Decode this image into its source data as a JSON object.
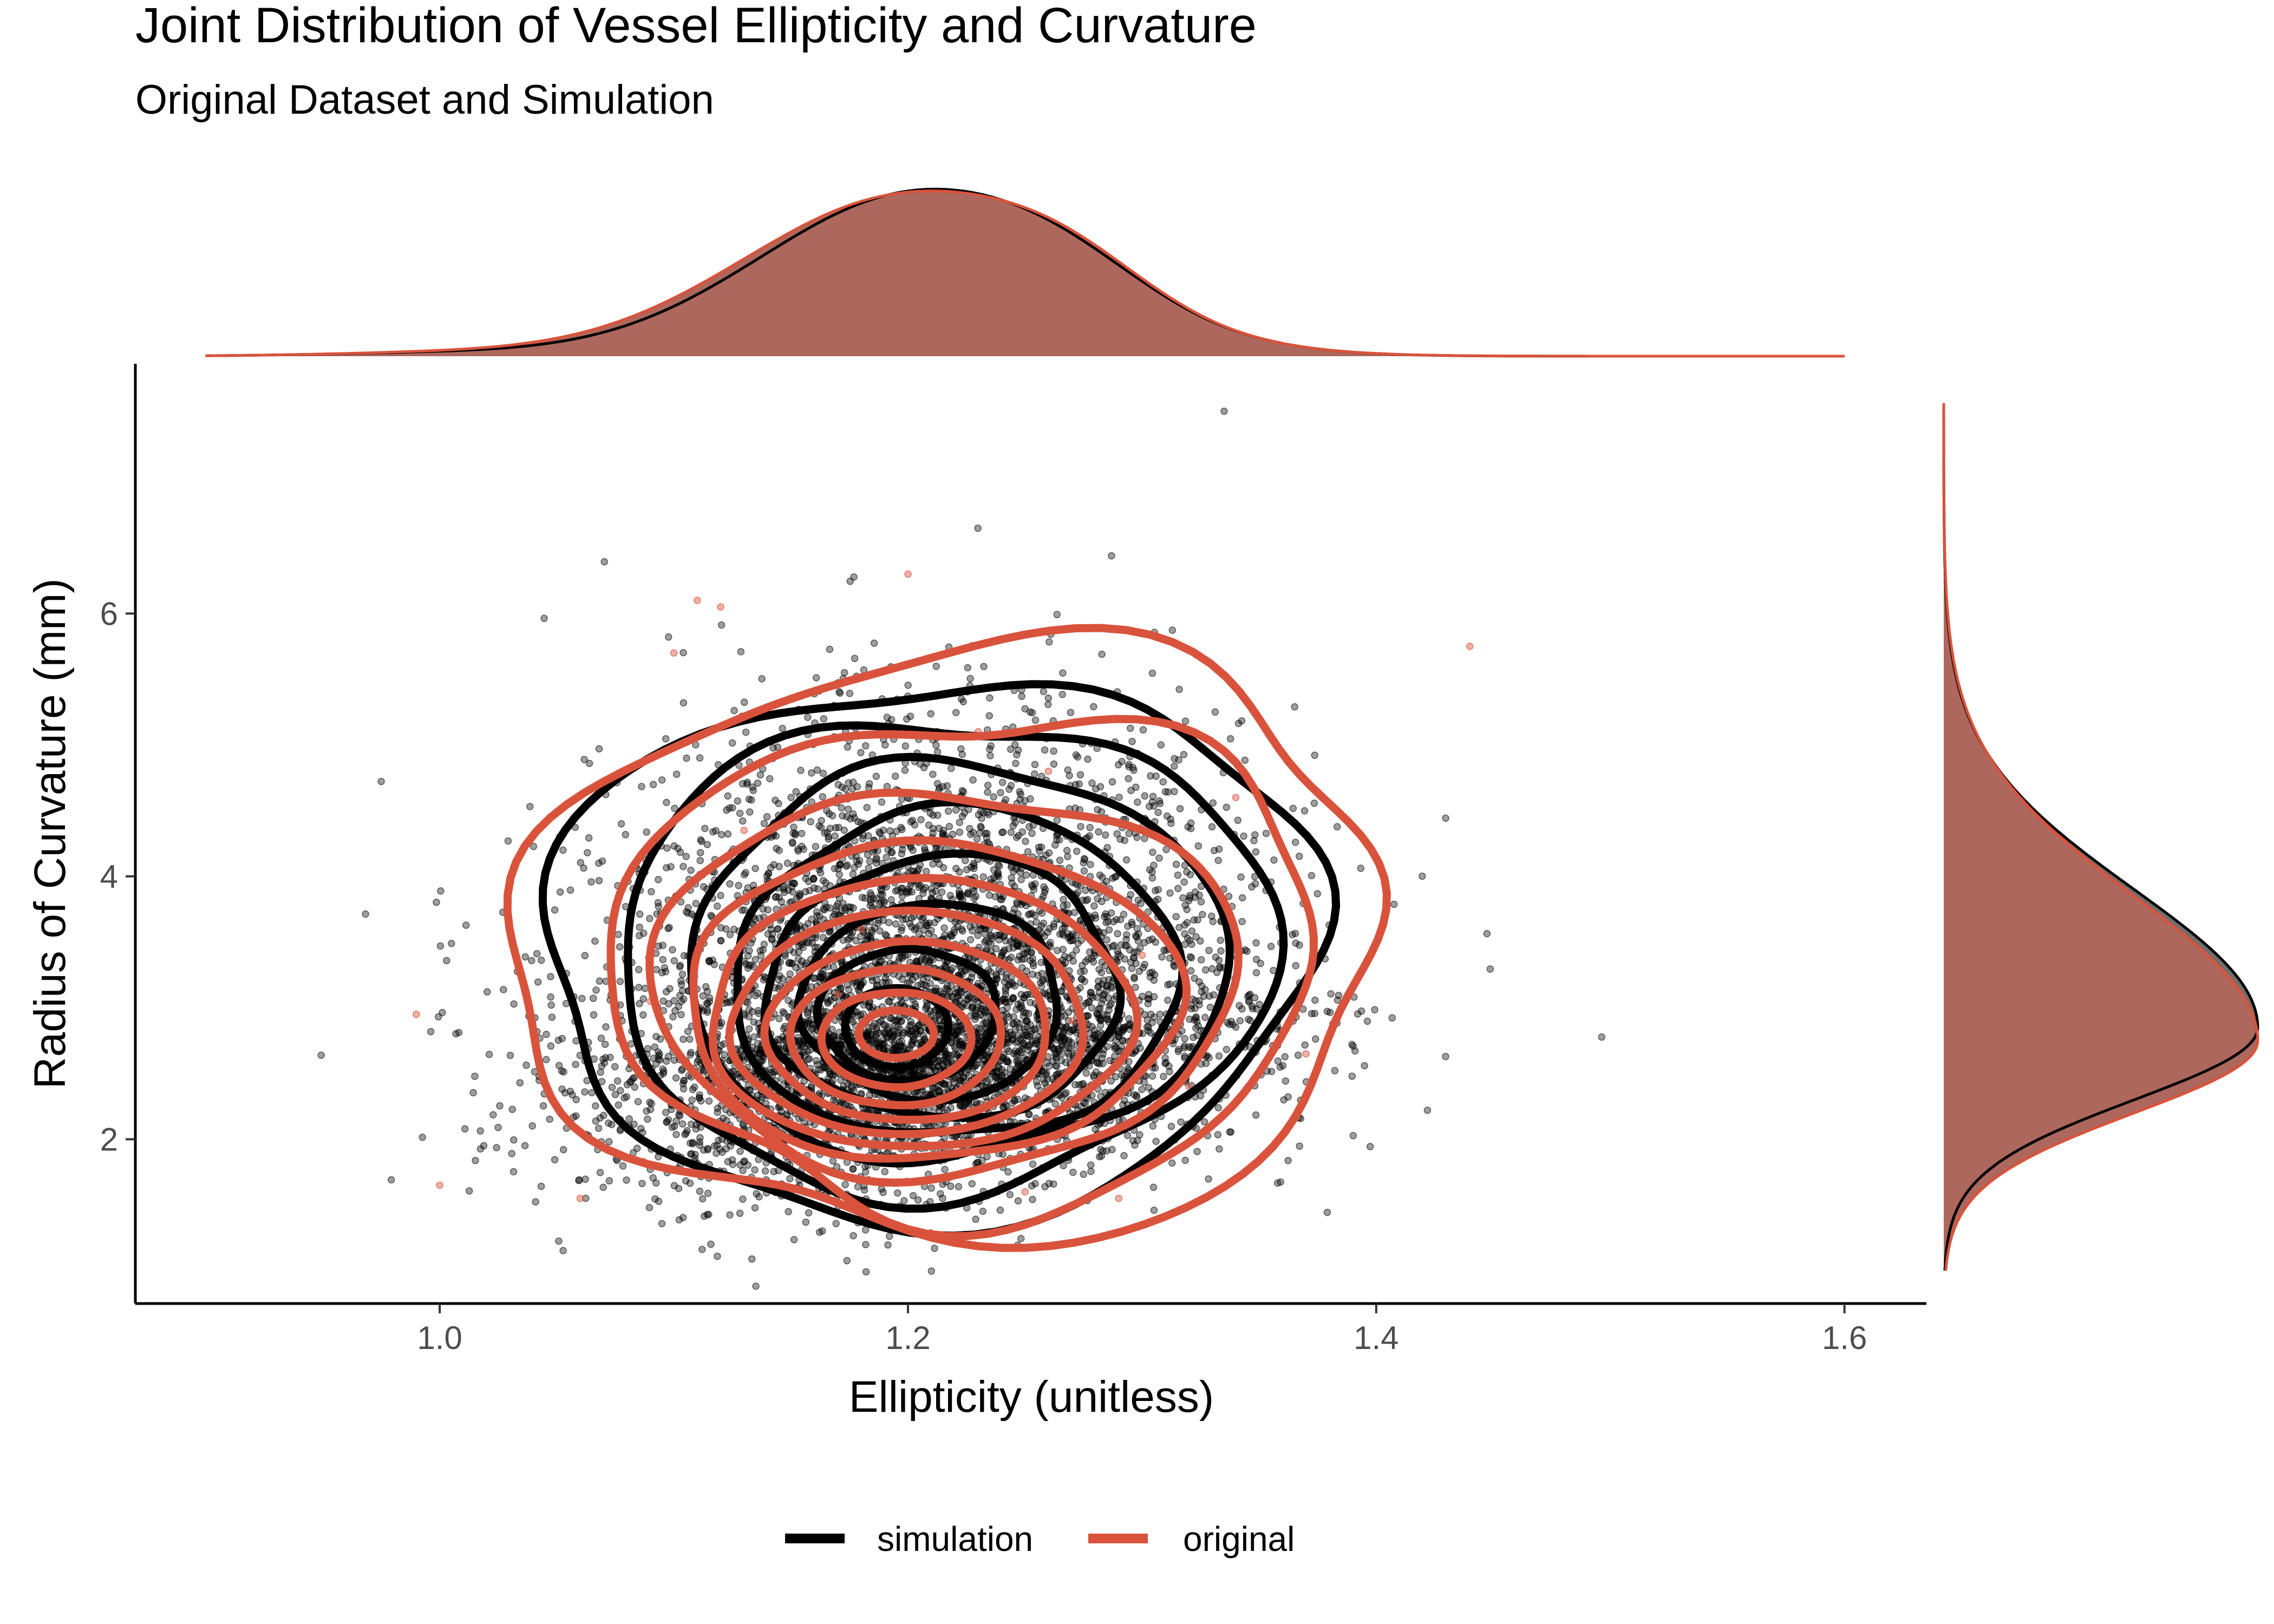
{
  "title": "Joint Distribution of Vessel Ellipticity and Curvature",
  "subtitle": "Original Dataset and Simulation",
  "colors": {
    "simulation": "#000000",
    "original": "#d9533c",
    "marginal_fill": "#ad675d",
    "axis": "#000000",
    "tick_text": "#4d4d4d"
  },
  "chart_data": {
    "type": "scatter",
    "subtype": "scatter with 2D density contours and marginal density plots",
    "title": "Joint Distribution of Vessel Ellipticity and Curvature",
    "subtitle": "Original Dataset and Simulation",
    "xlabel": "Ellipticity (unitless)",
    "ylabel": "Radius of Curvature (mm)",
    "xlim": [
      0.87,
      1.635
    ],
    "ylim": [
      0.75,
      7.9
    ],
    "x_ticks": [
      1.0,
      1.2,
      1.4,
      1.6
    ],
    "x_tick_labels": [
      "1.0",
      "1.2",
      "1.4",
      "1.6"
    ],
    "y_ticks": [
      2,
      4,
      6
    ],
    "y_tick_labels": [
      "2",
      "4",
      "6"
    ],
    "grid": false,
    "legend": {
      "position": "bottom",
      "entries": [
        {
          "label": "simulation",
          "color": "#000000"
        },
        {
          "label": "original",
          "color": "#d9533c"
        }
      ]
    },
    "series": [
      {
        "name": "simulation",
        "color": "#000000",
        "approx_n_points": 6000,
        "center": [
          1.21,
          3.3
        ],
        "contours": [
          {
            "cx": 1.21,
            "cy": 3.45,
            "rx": 0.165,
            "ry": 2.05,
            "skew": 0.08,
            "wobble": 0.045
          },
          {
            "cx": 1.215,
            "cy": 3.4,
            "rx": 0.14,
            "ry": 1.8,
            "skew": 0.07,
            "wobble": 0.04
          },
          {
            "cx": 1.22,
            "cy": 3.35,
            "rx": 0.115,
            "ry": 1.5,
            "skew": 0.06,
            "wobble": 0.035
          },
          {
            "cx": 1.22,
            "cy": 3.25,
            "rx": 0.095,
            "ry": 1.25,
            "skew": 0.05,
            "wobble": 0.03
          },
          {
            "cx": 1.215,
            "cy": 3.15,
            "rx": 0.075,
            "ry": 1.0,
            "skew": 0.04,
            "wobble": 0.03
          },
          {
            "cx": 1.21,
            "cy": 3.05,
            "rx": 0.055,
            "ry": 0.75,
            "skew": 0.03,
            "wobble": 0.025
          },
          {
            "cx": 1.2,
            "cy": 2.95,
            "rx": 0.038,
            "ry": 0.5,
            "skew": 0.02,
            "wobble": 0.02
          },
          {
            "cx": 1.195,
            "cy": 2.85,
            "rx": 0.022,
            "ry": 0.3,
            "skew": 0.0,
            "wobble": 0.01
          }
        ],
        "marginal_x": {
          "mean": 1.205,
          "sd": 0.068
        },
        "marginal_y": {
          "mode": 2.85,
          "sd_low": 0.55,
          "sd_high": 1.05
        }
      },
      {
        "name": "original",
        "color": "#d9533c",
        "approx_n_points": 25,
        "center": [
          1.2,
          2.8
        ],
        "contours": [
          {
            "cx": 1.22,
            "cy": 3.5,
            "rx": 0.185,
            "ry": 2.25,
            "skew": 0.1,
            "wobble": 0.06
          },
          {
            "cx": 1.225,
            "cy": 3.35,
            "rx": 0.15,
            "ry": 1.9,
            "skew": 0.08,
            "wobble": 0.055
          },
          {
            "cx": 1.215,
            "cy": 3.2,
            "rx": 0.125,
            "ry": 1.45,
            "skew": 0.06,
            "wobble": 0.035
          },
          {
            "cx": 1.21,
            "cy": 3.05,
            "rx": 0.105,
            "ry": 1.2,
            "skew": 0.05,
            "wobble": 0.025
          },
          {
            "cx": 1.205,
            "cy": 2.95,
            "rx": 0.09,
            "ry": 1.02,
            "skew": 0.04,
            "wobble": 0.02
          },
          {
            "cx": 1.2,
            "cy": 2.88,
            "rx": 0.075,
            "ry": 0.85,
            "skew": 0.03,
            "wobble": 0.015
          },
          {
            "cx": 1.2,
            "cy": 2.82,
            "rx": 0.06,
            "ry": 0.68,
            "skew": 0.02,
            "wobble": 0.012
          },
          {
            "cx": 1.195,
            "cy": 2.78,
            "rx": 0.045,
            "ry": 0.52,
            "skew": 0.015,
            "wobble": 0.01
          },
          {
            "cx": 1.195,
            "cy": 2.76,
            "rx": 0.032,
            "ry": 0.36,
            "skew": 0.01,
            "wobble": 0.008
          },
          {
            "cx": 1.195,
            "cy": 2.8,
            "rx": 0.016,
            "ry": 0.18,
            "skew": 0.0,
            "wobble": 0.005
          }
        ],
        "points": [
          [
            1.11,
            6.1
          ],
          [
            1.12,
            6.05
          ],
          [
            1.2,
            6.3
          ],
          [
            1.44,
            5.75
          ],
          [
            1.0,
            1.65
          ],
          [
            0.99,
            2.95
          ],
          [
            1.1,
            5.7
          ],
          [
            1.06,
            1.55
          ],
          [
            1.25,
            1.6
          ],
          [
            1.29,
            1.55
          ],
          [
            1.32,
            2.4
          ],
          [
            1.37,
            2.65
          ],
          [
            1.15,
            2.1
          ],
          [
            1.17,
            3.1
          ],
          [
            1.22,
            2.55
          ],
          [
            1.18,
            3.6
          ],
          [
            1.13,
            4.35
          ],
          [
            1.26,
            4.8
          ],
          [
            1.34,
            4.6
          ],
          [
            1.09,
            3.05
          ],
          [
            1.3,
            3.4
          ],
          [
            1.23,
            5.1
          ],
          [
            1.16,
            1.8
          ],
          [
            1.27,
            2.9
          ],
          [
            1.2,
            2.3
          ]
        ],
        "marginal_x": {
          "mean": 1.2,
          "sd": 0.07
        },
        "marginal_y": {
          "mode": 2.75,
          "sd_low": 0.55,
          "sd_high": 1.1
        }
      }
    ]
  }
}
